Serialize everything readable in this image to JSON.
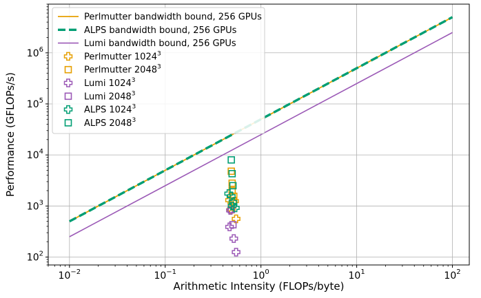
{
  "chart_data": {
    "type": "scatter",
    "xlabel": "Arithmetic Intensity (FLOPs/byte)",
    "ylabel": "Performance (GFLOPs/s)",
    "xscale": "log",
    "yscale": "log",
    "xlim": [
      0.006,
      150
    ],
    "ylim": [
      70,
      9000000
    ],
    "grid": true,
    "legend_position": "top-left",
    "x_ticks": [
      {
        "base": "10",
        "exp": "−2",
        "value": 0.01
      },
      {
        "base": "10",
        "exp": "−1",
        "value": 0.1
      },
      {
        "base": "10",
        "exp": "0",
        "value": 1
      },
      {
        "base": "10",
        "exp": "1",
        "value": 10
      },
      {
        "base": "10",
        "exp": "2",
        "value": 100
      }
    ],
    "y_ticks": [
      {
        "base": "10",
        "exp": "2",
        "value": 100
      },
      {
        "base": "10",
        "exp": "3",
        "value": 1000
      },
      {
        "base": "10",
        "exp": "4",
        "value": 10000
      },
      {
        "base": "10",
        "exp": "5",
        "value": 100000
      },
      {
        "base": "10",
        "exp": "6",
        "value": 1000000
      }
    ],
    "lines": [
      {
        "name": "Perlmutter bandwidth bound, 256 GPUs",
        "color": "#e69f00",
        "style": "solid",
        "width": 1.8,
        "x": [
          0.01,
          100
        ],
        "y": [
          500,
          5000000
        ]
      },
      {
        "name": "ALPS bandwidth bound, 256 GPUs",
        "color": "#009e73",
        "style": "dashed",
        "width": 3.4,
        "x": [
          0.01,
          100
        ],
        "y": [
          500,
          5000000
        ]
      },
      {
        "name": "Lumi bandwidth bound, 256 GPUs",
        "color": "#9b59b6",
        "style": "solid",
        "width": 1.6,
        "x": [
          0.01,
          100
        ],
        "y": [
          250,
          2500000
        ]
      }
    ],
    "series": [
      {
        "name": "Perlmutter 1024",
        "sup": "3",
        "marker": "plus",
        "color": "#e69f00",
        "points": [
          [
            0.47,
            1300
          ],
          [
            0.5,
            980
          ],
          [
            0.53,
            1250
          ],
          [
            0.55,
            560
          ],
          [
            0.49,
            860
          ]
        ]
      },
      {
        "name": "Perlmutter 2048",
        "sup": "3",
        "marker": "square",
        "color": "#e69f00",
        "points": [
          [
            0.49,
            4800
          ],
          [
            0.5,
            2800
          ],
          [
            0.5,
            2000
          ],
          [
            0.52,
            1550
          ],
          [
            0.51,
            1250
          ]
        ]
      },
      {
        "name": "Lumi 1024",
        "sup": "3",
        "marker": "plus",
        "color": "#9b59b6",
        "points": [
          [
            0.47,
            390
          ],
          [
            0.52,
            230
          ],
          [
            0.55,
            125
          ],
          [
            0.48,
            820
          ]
        ]
      },
      {
        "name": "Lumi 2048",
        "sup": "3",
        "marker": "square",
        "color": "#9b59b6",
        "points": [
          [
            0.51,
            430
          ],
          [
            0.49,
            850
          ]
        ]
      },
      {
        "name": "ALPS 1024",
        "sup": "3",
        "marker": "plus",
        "color": "#009e73",
        "points": [
          [
            0.46,
            1750
          ],
          [
            0.49,
            1550
          ],
          [
            0.51,
            1200
          ],
          [
            0.54,
            920
          ],
          [
            0.5,
            1000
          ]
        ]
      },
      {
        "name": "ALPS 2048",
        "sup": "3",
        "marker": "square",
        "color": "#009e73",
        "points": [
          [
            0.49,
            8000
          ],
          [
            0.5,
            4300
          ],
          [
            0.51,
            2500
          ]
        ]
      }
    ]
  }
}
